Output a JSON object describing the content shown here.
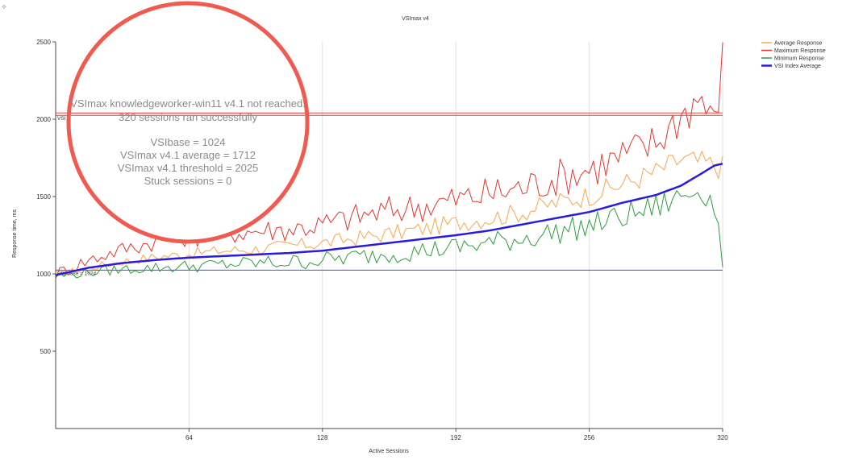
{
  "corner_glyph": "⟡",
  "chart_data": {
    "type": "line",
    "title": "VSImax v4",
    "xlabel": "Active Sessions",
    "ylabel": "Response time, ms",
    "xlim": [
      0,
      320
    ],
    "ylim": [
      0,
      2500
    ],
    "xticks": [
      64,
      128,
      192,
      256,
      320
    ],
    "yticks": [
      500,
      1000,
      1500,
      2000,
      2500
    ],
    "grid": true,
    "legend_position": "top-right",
    "series": [
      {
        "name": "Average Response",
        "color": "#ffa64d",
        "width": 1,
        "x": [
          0,
          16,
          32,
          48,
          64,
          80,
          96,
          112,
          128,
          144,
          160,
          176,
          192,
          208,
          224,
          240,
          256,
          272,
          288,
          300,
          310,
          320
        ],
        "y": [
          990,
          1040,
          1080,
          1110,
          1130,
          1150,
          1160,
          1180,
          1200,
          1230,
          1260,
          1290,
          1330,
          1360,
          1400,
          1460,
          1510,
          1580,
          1660,
          1740,
          1720,
          1690
        ]
      },
      {
        "name": "Maximum Response",
        "color": "#e8352e",
        "width": 1,
        "x": [
          0,
          16,
          32,
          48,
          64,
          80,
          96,
          112,
          128,
          144,
          160,
          176,
          192,
          208,
          224,
          240,
          256,
          272,
          288,
          300,
          310,
          316,
          320
        ],
        "y": [
          1000,
          1090,
          1160,
          1210,
          1240,
          1260,
          1280,
          1290,
          1320,
          1370,
          1410,
          1440,
          1480,
          1520,
          1560,
          1620,
          1680,
          1760,
          1850,
          2030,
          2150,
          1950,
          2390
        ]
      },
      {
        "name": "Minimum Response",
        "color": "#2e9e3a",
        "width": 1,
        "x": [
          0,
          16,
          32,
          48,
          64,
          80,
          96,
          112,
          128,
          144,
          160,
          176,
          192,
          208,
          224,
          240,
          256,
          272,
          288,
          300,
          310,
          318,
          320
        ],
        "y": [
          985,
          1010,
          1030,
          1040,
          1050,
          1060,
          1070,
          1075,
          1090,
          1110,
          1130,
          1150,
          1170,
          1200,
          1230,
          1270,
          1310,
          1370,
          1430,
          1500,
          1560,
          1390,
          990
        ]
      },
      {
        "name": "VSI Index Average",
        "color": "#2a1be0",
        "width": 2.5,
        "x": [
          0,
          16,
          32,
          48,
          64,
          80,
          96,
          112,
          128,
          144,
          160,
          176,
          192,
          208,
          224,
          240,
          256,
          272,
          288,
          300,
          310,
          316,
          320
        ],
        "y": [
          992,
          1040,
          1070,
          1090,
          1105,
          1115,
          1125,
          1135,
          1150,
          1175,
          1200,
          1225,
          1250,
          1280,
          1320,
          1360,
          1400,
          1460,
          1510,
          1570,
          1650,
          1700,
          1712
        ]
      }
    ],
    "reference_lines": [
      {
        "label": "VSI",
        "value": 2025,
        "color": "#e8352e"
      },
      {
        "label": "VSI base = 1024",
        "value": 1024,
        "color": "#4a4ae8"
      }
    ],
    "annotations": {
      "callout_lines": [
        "VSImax knowledgeworker-win11 v4.1 not reached.",
        "320 sessions ran successfully",
        "",
        "VSIbase = 1024",
        "VSImax v4.1 average = 1712",
        "VSImax v4.1 threshold = 2025",
        "Stuck sessions = 0"
      ],
      "highlight_color": "#f05a50"
    }
  }
}
